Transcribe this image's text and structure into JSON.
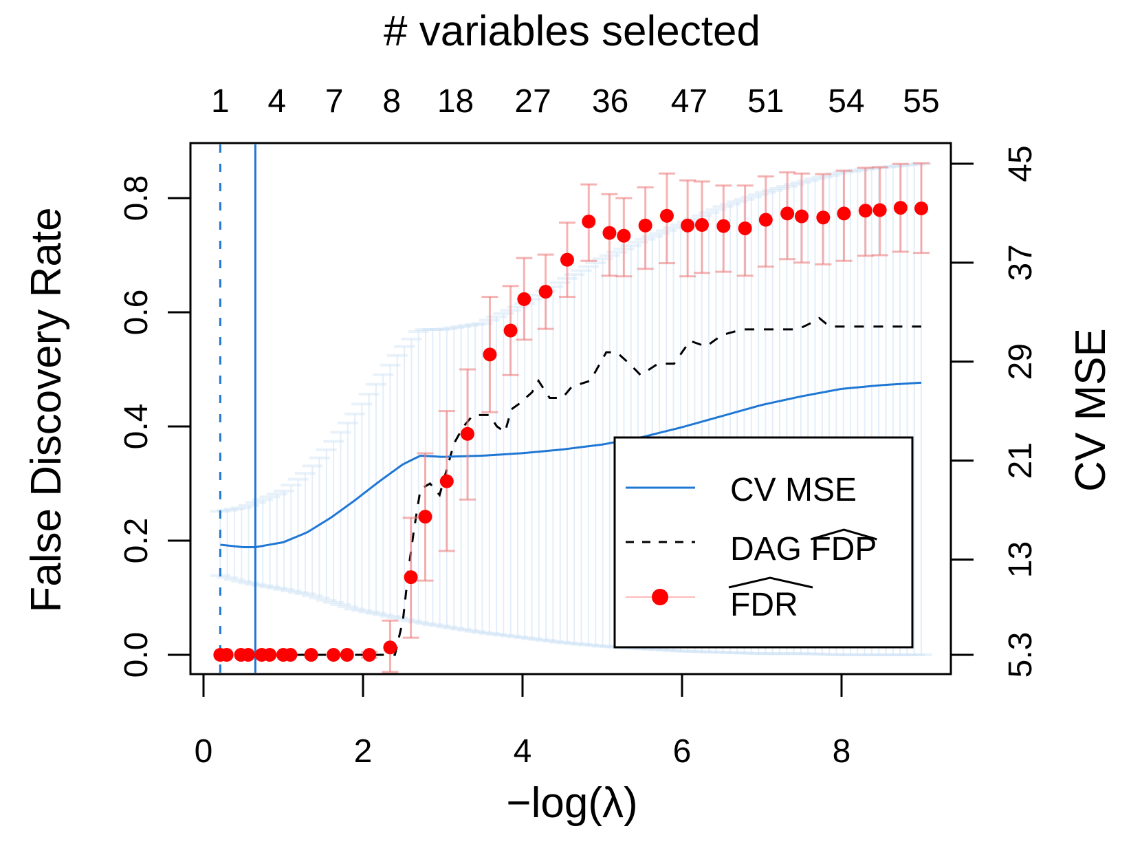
{
  "chart_data": {
    "type": "scatter",
    "title": "# variables selected",
    "xlabel": "−log(λ)",
    "ylabel": "False Discovery Rate",
    "ylabel_right": "CV MSE",
    "xlim": [
      0,
      9.2
    ],
    "ylim": [
      0.0,
      0.87
    ],
    "ylim_right": [
      5.3,
      45
    ],
    "x_ticks": [
      0,
      2,
      4,
      6,
      8
    ],
    "y_ticks": [
      0.0,
      0.2,
      0.4,
      0.6,
      0.8
    ],
    "y_tick_labels": [
      "0.0",
      "0.2",
      "0.4",
      "0.6",
      "0.8"
    ],
    "y_right_ticks": [
      5.3,
      13,
      21,
      29,
      37,
      45
    ],
    "y_right_tick_labels": [
      "5.3",
      "13",
      "21",
      "29",
      "37",
      "45"
    ],
    "top_axis": {
      "label": "# variables selected",
      "positions": [
        0.21,
        0.92,
        1.64,
        2.36,
        3.16,
        4.13,
        5.1,
        6.09,
        7.05,
        8.06,
        9.0
      ],
      "labels": [
        "1",
        "4",
        "7",
        "8",
        "18",
        "27",
        "36",
        "47",
        "51",
        "54",
        "55"
      ]
    },
    "vlines": [
      {
        "x": 0.21,
        "style": "dashed",
        "color": "#1f77d4",
        "meaning": "lambda.min"
      },
      {
        "x": 0.65,
        "style": "solid",
        "color": "#1f77d4",
        "meaning": "lambda.1se"
      }
    ],
    "legend": {
      "position": "bottom-right",
      "entries": [
        {
          "label": "CV MSE",
          "style": "solid-line",
          "color": "#1f77d4"
        },
        {
          "label": "DAG FDP",
          "hat_part": "FDP",
          "prefix": "DAG ",
          "style": "dashed-line",
          "color": "#000000"
        },
        {
          "label": "FDR",
          "hat_part": "FDR",
          "prefix": "",
          "style": "point-errorbar",
          "color": "#ff0000"
        }
      ]
    },
    "series": [
      {
        "name": "FDR hat",
        "color": "#ff0000",
        "axis": "left",
        "points": [
          {
            "x": 0.21,
            "y": 0.0,
            "lo": 0.0,
            "hi": 0.0
          },
          {
            "x": 0.29,
            "y": 0.0,
            "lo": 0.0,
            "hi": 0.0
          },
          {
            "x": 0.47,
            "y": 0.0,
            "lo": 0.0,
            "hi": 0.0
          },
          {
            "x": 0.56,
            "y": 0.0,
            "lo": 0.0,
            "hi": 0.0
          },
          {
            "x": 0.73,
            "y": 0.0,
            "lo": 0.0,
            "hi": 0.0
          },
          {
            "x": 0.83,
            "y": 0.0,
            "lo": 0.0,
            "hi": 0.0
          },
          {
            "x": 1.0,
            "y": 0.0,
            "lo": 0.0,
            "hi": 0.0
          },
          {
            "x": 1.09,
            "y": 0.0,
            "lo": 0.0,
            "hi": 0.0
          },
          {
            "x": 1.35,
            "y": 0.0,
            "lo": 0.0,
            "hi": 0.0
          },
          {
            "x": 1.63,
            "y": 0.0,
            "lo": 0.0,
            "hi": 0.0
          },
          {
            "x": 1.8,
            "y": 0.0,
            "lo": 0.0,
            "hi": 0.0
          },
          {
            "x": 2.08,
            "y": 0.0,
            "lo": -0.005,
            "hi": 0.005
          },
          {
            "x": 2.34,
            "y": 0.013,
            "lo": -0.03,
            "hi": 0.06
          },
          {
            "x": 2.6,
            "y": 0.136,
            "lo": 0.03,
            "hi": 0.24
          },
          {
            "x": 2.78,
            "y": 0.242,
            "lo": 0.13,
            "hi": 0.353
          },
          {
            "x": 3.05,
            "y": 0.304,
            "lo": 0.182,
            "hi": 0.427
          },
          {
            "x": 3.31,
            "y": 0.387,
            "lo": 0.272,
            "hi": 0.5
          },
          {
            "x": 3.59,
            "y": 0.526,
            "lo": 0.425,
            "hi": 0.627
          },
          {
            "x": 3.85,
            "y": 0.568,
            "lo": 0.49,
            "hi": 0.646
          },
          {
            "x": 4.02,
            "y": 0.623,
            "lo": 0.552,
            "hi": 0.695
          },
          {
            "x": 4.29,
            "y": 0.636,
            "lo": 0.571,
            "hi": 0.701
          },
          {
            "x": 4.56,
            "y": 0.692,
            "lo": 0.627,
            "hi": 0.757
          },
          {
            "x": 4.83,
            "y": 0.759,
            "lo": 0.69,
            "hi": 0.824
          },
          {
            "x": 5.09,
            "y": 0.739,
            "lo": 0.664,
            "hi": 0.807
          },
          {
            "x": 5.27,
            "y": 0.734,
            "lo": 0.663,
            "hi": 0.8
          },
          {
            "x": 5.54,
            "y": 0.752,
            "lo": 0.676,
            "hi": 0.819
          },
          {
            "x": 5.81,
            "y": 0.769,
            "lo": 0.686,
            "hi": 0.843
          },
          {
            "x": 6.07,
            "y": 0.752,
            "lo": 0.663,
            "hi": 0.831
          },
          {
            "x": 6.25,
            "y": 0.753,
            "lo": 0.669,
            "hi": 0.829
          },
          {
            "x": 6.52,
            "y": 0.751,
            "lo": 0.671,
            "hi": 0.822
          },
          {
            "x": 6.79,
            "y": 0.747,
            "lo": 0.664,
            "hi": 0.822
          },
          {
            "x": 7.05,
            "y": 0.762,
            "lo": 0.68,
            "hi": 0.838
          },
          {
            "x": 7.32,
            "y": 0.773,
            "lo": 0.693,
            "hi": 0.845
          },
          {
            "x": 7.5,
            "y": 0.768,
            "lo": 0.687,
            "hi": 0.843
          },
          {
            "x": 7.77,
            "y": 0.766,
            "lo": 0.684,
            "hi": 0.842
          },
          {
            "x": 8.03,
            "y": 0.773,
            "lo": 0.69,
            "hi": 0.848
          },
          {
            "x": 8.3,
            "y": 0.778,
            "lo": 0.699,
            "hi": 0.853
          },
          {
            "x": 8.48,
            "y": 0.779,
            "lo": 0.7,
            "hi": 0.854
          },
          {
            "x": 8.74,
            "y": 0.783,
            "lo": 0.706,
            "hi": 0.86
          },
          {
            "x": 9.0,
            "y": 0.782,
            "lo": 0.704,
            "hi": 0.861
          }
        ]
      },
      {
        "name": "DAG FDP hat",
        "color": "#000000",
        "style": "dashed",
        "axis": "left",
        "points": [
          [
            0.21,
            0.0
          ],
          [
            2.4,
            0.0
          ],
          [
            2.5,
            0.06
          ],
          [
            2.58,
            0.16
          ],
          [
            2.64,
            0.22
          ],
          [
            2.72,
            0.29
          ],
          [
            2.84,
            0.3
          ],
          [
            2.96,
            0.28
          ],
          [
            3.04,
            0.32
          ],
          [
            3.14,
            0.37
          ],
          [
            3.26,
            0.4
          ],
          [
            3.38,
            0.42
          ],
          [
            3.58,
            0.42
          ],
          [
            3.68,
            0.4
          ],
          [
            3.78,
            0.39
          ],
          [
            3.86,
            0.43
          ],
          [
            3.96,
            0.44
          ],
          [
            4.12,
            0.46
          ],
          [
            4.2,
            0.48
          ],
          [
            4.34,
            0.45
          ],
          [
            4.5,
            0.45
          ],
          [
            4.62,
            0.47
          ],
          [
            4.85,
            0.48
          ],
          [
            5.05,
            0.53
          ],
          [
            5.18,
            0.53
          ],
          [
            5.34,
            0.51
          ],
          [
            5.48,
            0.49
          ],
          [
            5.7,
            0.51
          ],
          [
            5.9,
            0.51
          ],
          [
            6.1,
            0.55
          ],
          [
            6.3,
            0.54
          ],
          [
            6.5,
            0.56
          ],
          [
            6.75,
            0.57
          ],
          [
            7.2,
            0.57
          ],
          [
            7.45,
            0.57
          ],
          [
            7.6,
            0.58
          ],
          [
            7.72,
            0.59
          ],
          [
            7.85,
            0.575
          ],
          [
            8.3,
            0.575
          ],
          [
            9.0,
            0.575
          ]
        ]
      },
      {
        "name": "CV MSE",
        "color": "#1f77d4",
        "axis": "right",
        "band_color": "#cfe3f6",
        "points": [
          {
            "x": 0.21,
            "y": 14.2,
            "lo": 11.7,
            "hi": 16.9
          },
          {
            "x": 0.5,
            "y": 14.0,
            "lo": 11.2,
            "hi": 17.2
          },
          {
            "x": 0.65,
            "y": 14.0,
            "lo": 11.0,
            "hi": 17.6
          },
          {
            "x": 1.0,
            "y": 14.4,
            "lo": 10.6,
            "hi": 18.5
          },
          {
            "x": 1.3,
            "y": 15.2,
            "lo": 10.2,
            "hi": 20.1
          },
          {
            "x": 1.6,
            "y": 16.4,
            "lo": 9.6,
            "hi": 22.3
          },
          {
            "x": 1.9,
            "y": 17.8,
            "lo": 9.0,
            "hi": 24.8
          },
          {
            "x": 2.2,
            "y": 19.3,
            "lo": 8.6,
            "hi": 27.5
          },
          {
            "x": 2.5,
            "y": 20.7,
            "lo": 8.2,
            "hi": 30.1
          },
          {
            "x": 2.72,
            "y": 21.4,
            "lo": 7.9,
            "hi": 31.6
          },
          {
            "x": 3.0,
            "y": 21.3,
            "lo": 7.6,
            "hi": 31.6
          },
          {
            "x": 3.5,
            "y": 21.4,
            "lo": 7.1,
            "hi": 32.1
          },
          {
            "x": 4.0,
            "y": 21.6,
            "lo": 6.7,
            "hi": 33.6
          },
          {
            "x": 4.5,
            "y": 21.9,
            "lo": 6.3,
            "hi": 35.5
          },
          {
            "x": 5.0,
            "y": 22.3,
            "lo": 6.0,
            "hi": 37.3
          },
          {
            "x": 5.5,
            "y": 22.9,
            "lo": 5.8,
            "hi": 38.8
          },
          {
            "x": 6.0,
            "y": 23.7,
            "lo": 5.6,
            "hi": 40.1
          },
          {
            "x": 6.5,
            "y": 24.6,
            "lo": 5.5,
            "hi": 41.5
          },
          {
            "x": 7.0,
            "y": 25.5,
            "lo": 5.4,
            "hi": 42.6
          },
          {
            "x": 7.5,
            "y": 26.2,
            "lo": 5.4,
            "hi": 43.5
          },
          {
            "x": 8.0,
            "y": 26.8,
            "lo": 5.3,
            "hi": 44.3
          },
          {
            "x": 8.5,
            "y": 27.1,
            "lo": 5.3,
            "hi": 44.7
          },
          {
            "x": 9.0,
            "y": 27.3,
            "lo": 5.3,
            "hi": 45.0
          }
        ]
      }
    ]
  }
}
